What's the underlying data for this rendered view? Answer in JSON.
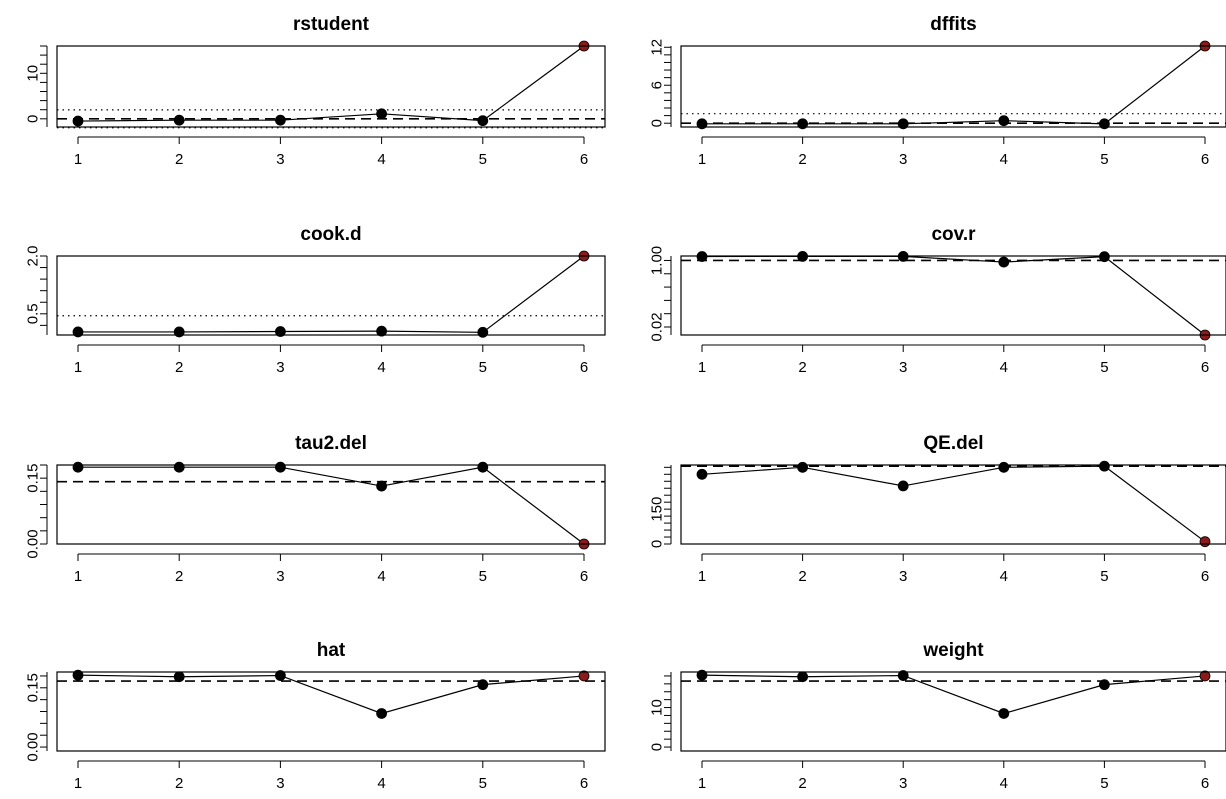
{
  "chart_data": [
    {
      "type": "line",
      "title": "rstudent",
      "x": [
        1,
        2,
        3,
        4,
        5,
        6
      ],
      "values": [
        -0.5,
        -0.3,
        -0.3,
        1.1,
        -0.4,
        16.0
      ],
      "highlight": [
        6
      ],
      "ylim": [
        -1.8,
        16.0
      ],
      "yticks": [
        0,
        10
      ],
      "hlines": [
        {
          "y": 0,
          "style": "dashed"
        },
        {
          "y": 1.96,
          "style": "dotted"
        },
        {
          "y": -1.96,
          "style": "dotted"
        }
      ]
    },
    {
      "type": "line",
      "title": "dffits",
      "x": [
        1,
        2,
        3,
        4,
        5,
        6
      ],
      "values": [
        -0.1,
        -0.1,
        -0.1,
        0.4,
        -0.1,
        12.2
      ],
      "highlight": [
        6
      ],
      "ylim": [
        -0.6,
        12.2
      ],
      "yticks": [
        0,
        6,
        12
      ],
      "hlines": [
        {
          "y": 0,
          "style": "dashed"
        },
        {
          "y": 1.5,
          "style": "dotted"
        }
      ]
    },
    {
      "type": "line",
      "title": "cook.d",
      "x": [
        1,
        2,
        3,
        4,
        5,
        6
      ],
      "values": [
        0.03,
        0.03,
        0.04,
        0.05,
        0.02,
        2.0
      ],
      "highlight": [
        6
      ],
      "ylim": [
        -0.05,
        2.0
      ],
      "yticks": [
        0.5,
        2.0
      ],
      "ytick_labels": [
        "0.5",
        "2.0"
      ],
      "hlines": [
        {
          "y": 0.45,
          "style": "dotted"
        }
      ]
    },
    {
      "type": "line",
      "title": "cov.r",
      "log": true,
      "x": [
        1,
        2,
        3,
        4,
        5,
        6
      ],
      "values": [
        1.26,
        1.27,
        1.27,
        0.91,
        1.25,
        0.0125
      ],
      "highlight": [
        6
      ],
      "ylim": [
        0.0125,
        1.3
      ],
      "yticks": [
        0.02,
        1.0
      ],
      "ytick_labels": [
        "0.02",
        "1.00"
      ],
      "hlines": [
        {
          "y": 1.0,
          "style": "dashed"
        }
      ]
    },
    {
      "type": "line",
      "title": "tau2.del",
      "x": [
        1,
        2,
        3,
        4,
        5,
        6
      ],
      "values": [
        0.175,
        0.175,
        0.175,
        0.132,
        0.175,
        0.0
      ],
      "highlight": [
        6
      ],
      "ylim": [
        0.0,
        0.18
      ],
      "yticks": [
        0.0,
        0.15
      ],
      "ytick_labels": [
        "0.00",
        "0.15"
      ],
      "hlines": [
        {
          "y": 0.142,
          "style": "dashed"
        }
      ]
    },
    {
      "type": "line",
      "title": "QE.del",
      "x": [
        1,
        2,
        3,
        4,
        5,
        6
      ],
      "values": [
        300,
        330,
        250,
        330,
        335,
        10
      ],
      "highlight": [
        6
      ],
      "ylim": [
        0,
        340
      ],
      "yticks": [
        0,
        150
      ],
      "ytick_labels": [
        "0",
        "150"
      ],
      "hlines": [
        {
          "y": 335,
          "style": "dashed"
        }
      ]
    },
    {
      "type": "line",
      "title": "hat",
      "x": [
        1,
        2,
        3,
        4,
        5,
        6
      ],
      "values": [
        0.182,
        0.178,
        0.181,
        0.085,
        0.158,
        0.18
      ],
      "highlight": [
        6
      ],
      "ylim": [
        -0.01,
        0.19
      ],
      "yticks": [
        0.0,
        0.15
      ],
      "ytick_labels": [
        "0.00",
        "0.15"
      ],
      "hlines": [
        {
          "y": 0.167,
          "style": "dashed"
        }
      ]
    },
    {
      "type": "line",
      "title": "weight",
      "x": [
        1,
        2,
        3,
        4,
        5,
        6
      ],
      "values": [
        18.2,
        17.8,
        18.1,
        8.5,
        15.8,
        18.0
      ],
      "highlight": [
        6
      ],
      "ylim": [
        -1.0,
        19.0
      ],
      "yticks": [
        0,
        10
      ],
      "ytick_labels": [
        "0",
        "10"
      ],
      "hlines": [
        {
          "y": 16.7,
          "style": "dashed"
        }
      ]
    }
  ],
  "colors": {
    "point": "#000000",
    "highlight": "#8b1a1a",
    "axis": "#000000"
  }
}
